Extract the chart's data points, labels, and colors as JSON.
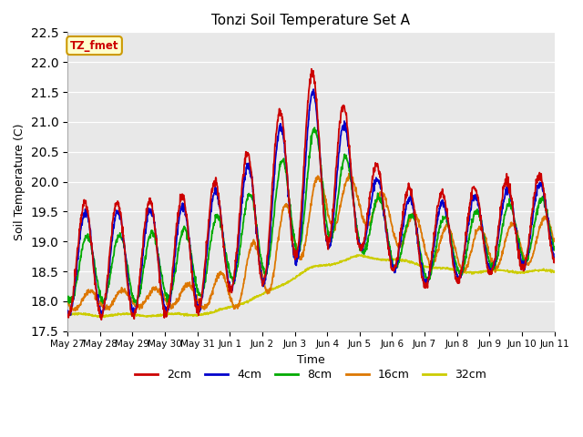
{
  "title": "Tonzi Soil Temperature Set A",
  "xlabel": "Time",
  "ylabel": "Soil Temperature (C)",
  "ylim": [
    17.5,
    22.5
  ],
  "yticks": [
    17.5,
    18.0,
    18.5,
    19.0,
    19.5,
    20.0,
    20.5,
    21.0,
    21.5,
    22.0,
    22.5
  ],
  "colors": {
    "2cm": "#cc0000",
    "4cm": "#0000cc",
    "8cm": "#00aa00",
    "16cm": "#dd7700",
    "32cm": "#cccc00"
  },
  "date_labels": [
    "May 27",
    "May 28",
    "May 29",
    "May 30",
    "May 31",
    "Jun 1",
    "Jun 2",
    "Jun 3",
    "Jun 4",
    "Jun 5",
    "Jun 6",
    "Jun 7",
    "Jun 8",
    "Jun 9",
    "Jun 10",
    "Jun 11"
  ],
  "n_days": 15,
  "points_per_day": 96
}
